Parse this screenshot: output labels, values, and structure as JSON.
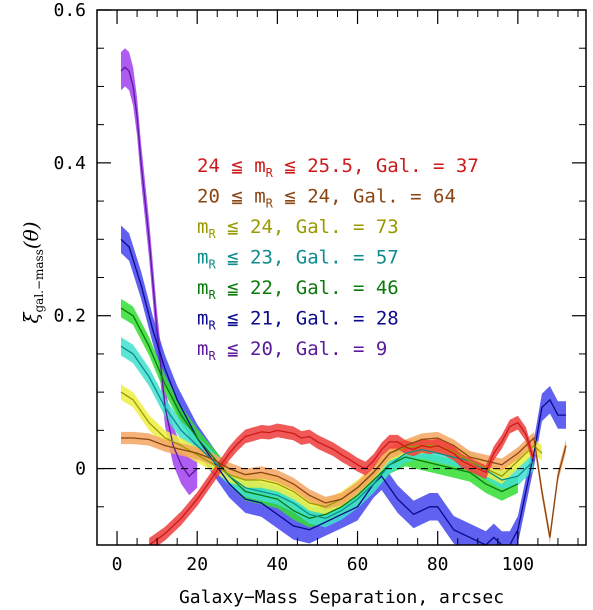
{
  "chart_data": {
    "type": "line",
    "xlabel": "Galaxy−Mass Separation, arcsec",
    "ylabel_main": "ξ",
    "ylabel_sub": "gal.−mass",
    "ylabel_arg": "(θ)",
    "xlim": [
      -5,
      117
    ],
    "ylim": [
      -0.1,
      0.6
    ],
    "x_ticks": [
      0,
      20,
      40,
      60,
      80,
      100
    ],
    "y_ticks": [
      0,
      0.2,
      0.4,
      0.6
    ],
    "x_tick_labels": [
      "0",
      "20",
      "40",
      "60",
      "80",
      "100"
    ],
    "y_tick_labels": [
      "0",
      "0.2",
      "0.4",
      "0.6"
    ],
    "zero_line": {
      "y": 0,
      "style": "dashed"
    },
    "legend_placement": "upper-right",
    "series": [
      {
        "name": "24 ≦ m_R ≦ 25.5, Gal. = 37",
        "legend_pre": "24 ≦ m",
        "legend_sub": "R",
        "legend_post": " ≦ 25.5, Gal. = 37",
        "color": "#cc1a1a",
        "band_color": "#ee3b3b",
        "band_halfwidth": 0.009,
        "x": [
          8,
          12,
          16,
          20,
          22,
          24,
          26,
          28,
          30,
          32,
          34,
          36,
          38,
          40,
          42,
          44,
          46,
          48,
          50,
          52,
          54,
          56,
          58,
          60,
          62,
          64,
          66,
          68,
          70,
          72,
          74,
          76,
          78,
          80,
          82,
          84,
          86,
          88,
          90,
          92,
          94,
          96,
          98,
          100,
          102,
          104
        ],
        "y": [
          -0.1,
          -0.085,
          -0.065,
          -0.04,
          -0.025,
          -0.01,
          0.005,
          0.02,
          0.032,
          0.042,
          0.045,
          0.048,
          0.047,
          0.05,
          0.048,
          0.046,
          0.04,
          0.042,
          0.035,
          0.03,
          0.025,
          0.018,
          0.012,
          0.005,
          0.0,
          0.01,
          0.025,
          0.035,
          0.035,
          0.028,
          0.025,
          0.03,
          0.028,
          0.03,
          0.025,
          0.02,
          0.01,
          0.005,
          0.0,
          -0.005,
          0.02,
          0.035,
          0.055,
          0.06,
          0.045,
          0.01
        ]
      },
      {
        "name": "20 ≦ m_R ≦ 24, Gal. = 64",
        "legend_pre": "20 ≦ m",
        "legend_sub": "R",
        "legend_post": " ≦ 24, Gal. = 64",
        "color": "#8b4513",
        "band_color": "#f4a460",
        "band_halfwidth": 0.008,
        "x": [
          1,
          4,
          8,
          12,
          16,
          20,
          24,
          28,
          32,
          36,
          40,
          44,
          48,
          52,
          56,
          60,
          64,
          68,
          72,
          76,
          80,
          84,
          88,
          92,
          96,
          100,
          104,
          106,
          108,
          110,
          112
        ],
        "y": [
          0.04,
          0.04,
          0.038,
          0.03,
          0.025,
          0.02,
          0.012,
          0.0,
          -0.008,
          -0.005,
          -0.01,
          -0.02,
          -0.035,
          -0.045,
          -0.04,
          -0.025,
          -0.005,
          0.02,
          0.03,
          0.038,
          0.04,
          0.03,
          0.015,
          0.01,
          0.005,
          0.02,
          0.04,
          -0.03,
          -0.09,
          -0.01,
          0.03
        ]
      },
      {
        "name": "m_R ≦ 24, Gal. = 73",
        "legend_pre": "m",
        "legend_sub": "R",
        "legend_post": " ≦ 24, Gal. = 73",
        "color": "#999900",
        "band_color": "#eeee44",
        "band_halfwidth": 0.01,
        "x": [
          1,
          4,
          8,
          12,
          16,
          20,
          24,
          28,
          32,
          36,
          40,
          44,
          48,
          52,
          56,
          60,
          64,
          68,
          72,
          76,
          80,
          84,
          88,
          92,
          96,
          100,
          104,
          106
        ],
        "y": [
          0.1,
          0.09,
          0.06,
          0.04,
          0.03,
          0.018,
          0.006,
          -0.008,
          -0.015,
          -0.015,
          -0.02,
          -0.03,
          -0.045,
          -0.05,
          -0.04,
          -0.025,
          -0.005,
          0.02,
          0.028,
          0.03,
          0.03,
          0.022,
          0.01,
          0.0,
          -0.01,
          0.01,
          0.03,
          0.02
        ]
      },
      {
        "name": "m_R ≦ 23, Gal. = 57",
        "legend_pre": "m",
        "legend_sub": "R",
        "legend_post": " ≦ 23, Gal. = 57",
        "color": "#0d8c8c",
        "band_color": "#40e0d0",
        "band_halfwidth": 0.012,
        "x": [
          1,
          4,
          8,
          12,
          16,
          20,
          24,
          28,
          32,
          36,
          40,
          44,
          48,
          52,
          56,
          60,
          64,
          68,
          72,
          76,
          80,
          84,
          88,
          92,
          96,
          100,
          104
        ],
        "y": [
          0.16,
          0.15,
          0.12,
          0.08,
          0.05,
          0.03,
          0.01,
          -0.01,
          -0.025,
          -0.03,
          -0.035,
          -0.045,
          -0.06,
          -0.065,
          -0.055,
          -0.04,
          -0.02,
          0.005,
          0.02,
          0.025,
          0.02,
          0.015,
          0.01,
          -0.002,
          -0.015,
          -0.01,
          0.01
        ]
      },
      {
        "name": "m_R ≦ 22, Gal. = 46",
        "legend_pre": "m",
        "legend_sub": "R",
        "legend_post": " ≦ 22, Gal. = 46",
        "color": "#0b7a0b",
        "band_color": "#33dd33",
        "band_halfwidth": 0.012,
        "x": [
          1,
          4,
          8,
          12,
          16,
          20,
          24,
          28,
          32,
          36,
          40,
          44,
          48,
          52,
          56,
          60,
          64,
          68,
          72,
          76,
          80,
          84,
          88,
          92,
          96,
          100
        ],
        "y": [
          0.21,
          0.2,
          0.16,
          0.11,
          0.07,
          0.04,
          0.015,
          -0.01,
          -0.03,
          -0.035,
          -0.04,
          -0.055,
          -0.065,
          -0.06,
          -0.05,
          -0.035,
          -0.015,
          0.005,
          0.015,
          0.01,
          0.005,
          0.0,
          -0.005,
          -0.02,
          -0.03,
          -0.02
        ]
      },
      {
        "name": "m_R ≦ 21, Gal. = 28",
        "legend_pre": "m",
        "legend_sub": "R",
        "legend_post": " ≦ 21, Gal. = 28",
        "color": "#0a0a8c",
        "band_color": "#4444ee",
        "band_halfwidth": 0.018,
        "x": [
          1,
          3,
          6,
          9,
          12,
          15,
          18,
          20,
          24,
          28,
          32,
          36,
          40,
          44,
          48,
          52,
          56,
          60,
          64,
          66,
          70,
          74,
          78,
          80,
          84,
          88,
          92,
          94,
          96,
          98,
          100,
          102,
          104,
          106,
          108,
          110,
          112
        ],
        "y": [
          0.3,
          0.29,
          0.24,
          0.18,
          0.13,
          0.09,
          0.06,
          0.04,
          0.01,
          -0.02,
          -0.04,
          -0.045,
          -0.06,
          -0.075,
          -0.08,
          -0.07,
          -0.06,
          -0.05,
          -0.02,
          -0.01,
          -0.04,
          -0.06,
          -0.05,
          -0.05,
          -0.08,
          -0.09,
          -0.1,
          -0.09,
          -0.1,
          -0.1,
          -0.08,
          -0.03,
          0.02,
          0.08,
          0.09,
          0.07,
          0.07
        ]
      },
      {
        "name": "m_R ≦ 20, Gal. = 9",
        "legend_pre": "m",
        "legend_sub": "R",
        "legend_post": " ≦ 20, Gal. = 9",
        "color": "#5a1a9a",
        "band_color": "#a040ee",
        "band_halfwidth": 0.025,
        "x": [
          1,
          2,
          3,
          4,
          5,
          6,
          8,
          10,
          12,
          14,
          16,
          18,
          20
        ],
        "y": [
          0.52,
          0.525,
          0.52,
          0.5,
          0.46,
          0.4,
          0.3,
          0.18,
          0.08,
          0.03,
          0.005,
          -0.01,
          0.0
        ]
      }
    ]
  }
}
